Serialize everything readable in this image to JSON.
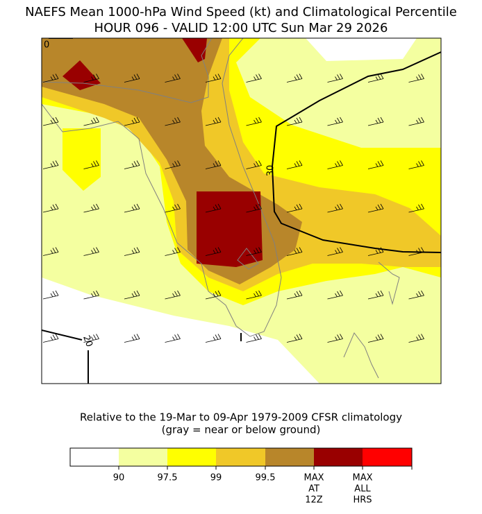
{
  "title": [
    "NAEFS Mean 1000-hPa Wind Speed (kt) and Climatological Percentile",
    "HOUR 096 - VALID 12:00 UTC Sun Mar 29 2026"
  ],
  "contour_labels": [
    "0",
    "30",
    "20"
  ],
  "caption": [
    "Relative to the 19-Mar to 09-Apr 1979-2009 CFSR climatology",
    "(gray = near or below ground)"
  ],
  "colorbar": {
    "labels": [
      [
        "90"
      ],
      [
        "97.5"
      ],
      [
        "99"
      ],
      [
        "99.5"
      ],
      [
        "MAX",
        "AT",
        "12Z"
      ],
      [
        "MAX",
        "ALL",
        "HRS"
      ]
    ]
  }
}
